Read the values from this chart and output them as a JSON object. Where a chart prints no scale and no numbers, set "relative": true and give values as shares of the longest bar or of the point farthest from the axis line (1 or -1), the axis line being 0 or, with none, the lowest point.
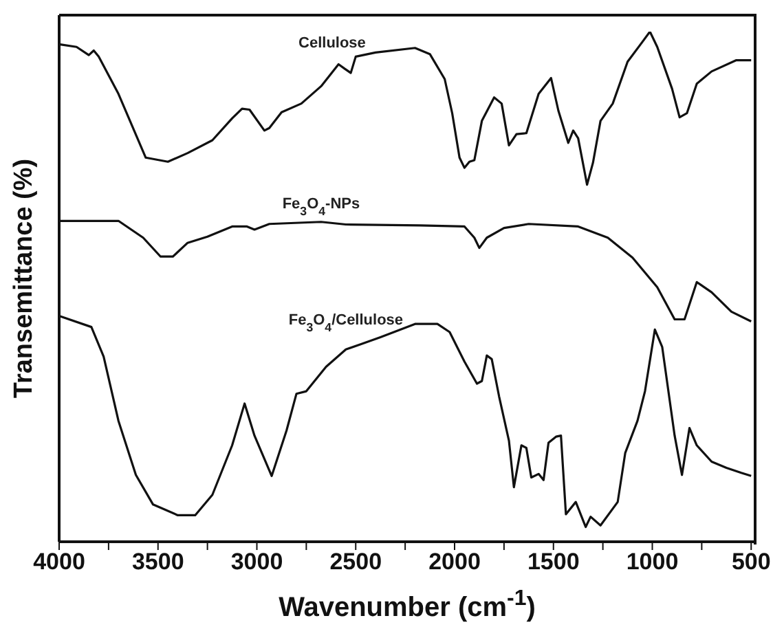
{
  "chart_data": {
    "type": "line",
    "relative": true,
    "xlabel": "Wavenumber (cm$^{-1}$)",
    "ylabel": "Transemittance (%)",
    "xlim": [
      4000,
      480
    ],
    "xticks": [
      4000,
      {
        "value": 3750,
        "label": null
      },
      3500,
      {
        "value": 3250,
        "label": null
      },
      3000,
      {
        "value": 2750,
        "label": null
      },
      2500,
      {
        "value": 2250,
        "label": null
      },
      2000,
      {
        "value": 1750,
        "label": null
      },
      1500,
      {
        "value": 1250,
        "label": null
      },
      1000,
      {
        "value": 750,
        "label": null
      },
      500
    ],
    "marker": "none",
    "line_style": "solid",
    "series": [
      {
        "name": "Cellulose",
        "color": "#111111",
        "x": [
          3995,
          3912,
          3850,
          3825,
          3800,
          3700,
          3562,
          3450,
          3350,
          3225,
          3125,
          3075,
          3037,
          2962,
          2937,
          2875,
          2775,
          2675,
          2587,
          2555,
          2525,
          2500,
          2400,
          2200,
          2125,
          2050,
          2012,
          1975,
          1950,
          1925,
          1900,
          1862,
          1800,
          1762,
          1725,
          1687,
          1637,
          1575,
          1512,
          1475,
          1425,
          1400,
          1375,
          1330,
          1300,
          1262,
          1200,
          1125,
          1050,
          1012,
          975,
          900,
          862,
          825,
          775,
          700,
          575,
          500
        ],
        "values": [
          0.975,
          0.97,
          0.954,
          0.963,
          0.951,
          0.878,
          0.753,
          0.745,
          0.762,
          0.787,
          0.83,
          0.849,
          0.847,
          0.806,
          0.811,
          0.842,
          0.859,
          0.893,
          0.936,
          0.927,
          0.919,
          0.951,
          0.959,
          0.968,
          0.956,
          0.907,
          0.84,
          0.753,
          0.733,
          0.745,
          0.748,
          0.825,
          0.871,
          0.859,
          0.777,
          0.799,
          0.801,
          0.878,
          0.909,
          0.845,
          0.782,
          0.806,
          0.791,
          0.7,
          0.743,
          0.825,
          0.859,
          0.941,
          0.98,
          1,
          0.97,
          0.888,
          0.832,
          0.84,
          0.898,
          0.922,
          0.944,
          0.944
        ]
      },
      {
        "name": "Fe$_{3}$O$_{4}$-NPs",
        "color": "#111111",
        "x": [
          3995,
          3700,
          3575,
          3487,
          3425,
          3350,
          3250,
          3125,
          3050,
          3012,
          2937,
          2675,
          2550,
          2175,
          1950,
          1900,
          1875,
          1837,
          1750,
          1625,
          1375,
          1225,
          1100,
          975,
          887,
          837,
          775,
          700,
          600,
          500
        ],
        "values": [
          0.629,
          0.629,
          0.596,
          0.559,
          0.559,
          0.586,
          0.598,
          0.618,
          0.618,
          0.612,
          0.623,
          0.627,
          0.622,
          0.62,
          0.618,
          0.596,
          0.576,
          0.596,
          0.615,
          0.623,
          0.618,
          0.596,
          0.557,
          0.499,
          0.436,
          0.436,
          0.509,
          0.489,
          0.451,
          0.432
        ]
      },
      {
        "name": "Fe$_{3}$O$_{4}$/Cellulose",
        "color": "#111111",
        "x": [
          3995,
          3837,
          3775,
          3700,
          3612,
          3525,
          3400,
          3312,
          3225,
          3125,
          3062,
          3012,
          2925,
          2850,
          2800,
          2750,
          2650,
          2550,
          2475,
          2375,
          2200,
          2087,
          2025,
          1950,
          1887,
          1862,
          1837,
          1812,
          1775,
          1725,
          1700,
          1662,
          1637,
          1612,
          1575,
          1550,
          1525,
          1487,
          1462,
          1437,
          1387,
          1337,
          1312,
          1262,
          1175,
          1137,
          1075,
          1037,
          987,
          950,
          887,
          850,
          812,
          775,
          700,
          625,
          550,
          500
        ],
        "values": [
          0.442,
          0.421,
          0.363,
          0.237,
          0.131,
          0.073,
          0.052,
          0.052,
          0.092,
          0.189,
          0.271,
          0.208,
          0.129,
          0.218,
          0.29,
          0.295,
          0.343,
          0.377,
          0.387,
          0.401,
          0.427,
          0.427,
          0.411,
          0.353,
          0.31,
          0.315,
          0.365,
          0.358,
          0.285,
          0.198,
          0.107,
          0.189,
          0.184,
          0.126,
          0.133,
          0.121,
          0.194,
          0.206,
          0.208,
          0.054,
          0.078,
          0.029,
          0.049,
          0.032,
          0.078,
          0.174,
          0.237,
          0.295,
          0.416,
          0.382,
          0.208,
          0.131,
          0.223,
          0.189,
          0.157,
          0.145,
          0.135,
          0.129
        ]
      }
    ]
  }
}
